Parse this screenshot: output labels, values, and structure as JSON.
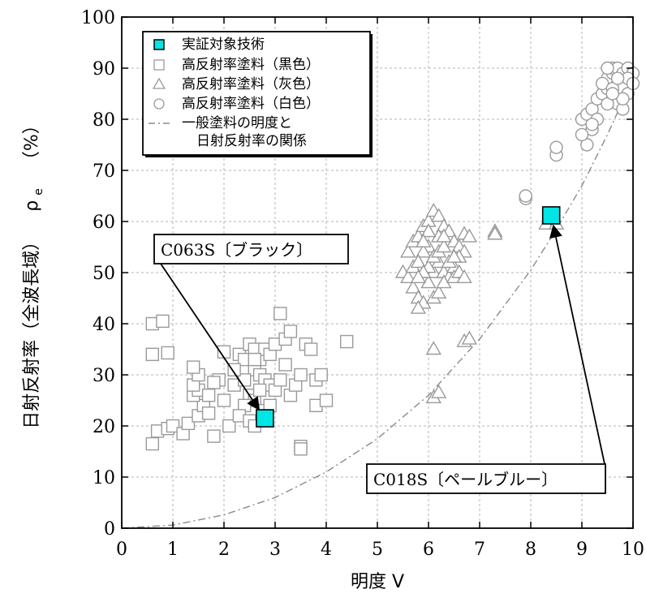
{
  "chart_data": {
    "type": "scatter",
    "title": "",
    "xlabel": "明度 V",
    "ylabel": "日射反射率（全波長域） ρe（%）",
    "ylabel_main": "日射反射率（全波長域）",
    "ylabel_rho": "ρ",
    "ylabel_sub": "e",
    "ylabel_unit": "（%）",
    "xlim": [
      0,
      10
    ],
    "ylim": [
      0,
      100
    ],
    "x_ticks": [
      "0",
      "1",
      "2",
      "3",
      "4",
      "5",
      "6",
      "7",
      "8",
      "9",
      "10"
    ],
    "y_ticks": [
      "0",
      "10",
      "20",
      "30",
      "40",
      "50",
      "60",
      "70",
      "80",
      "90",
      "100"
    ],
    "grid": true,
    "legend_position": "top-left",
    "colors": {
      "target": "#00e5e5",
      "gray_marker": "#9a9a9a",
      "curve": "#8a8a8a",
      "arrow": "#000000"
    },
    "legend": [
      {
        "label": "実証対象技術",
        "marker": "filled-square"
      },
      {
        "label": "高反射率塗料（黒色）",
        "marker": "square"
      },
      {
        "label": "高反射率塗料（灰色）",
        "marker": "triangle"
      },
      {
        "label": "高反射率塗料（白色）",
        "marker": "circle"
      },
      {
        "label": "一般塗料の明度と",
        "label2": "日射反射率の関係",
        "marker": "dashdot-line"
      }
    ],
    "series": [
      {
        "name": "実証対象技術",
        "marker": "filled-square",
        "points": [
          [
            2.8,
            21.5
          ],
          [
            8.4,
            61.2
          ]
        ]
      },
      {
        "name": "高反射率塗料（黒色）",
        "marker": "square",
        "points": [
          [
            0.6,
            40
          ],
          [
            0.8,
            40.5
          ],
          [
            0.6,
            34
          ],
          [
            0.9,
            34.3
          ],
          [
            0.7,
            19
          ],
          [
            0.9,
            19.5
          ],
          [
            0.6,
            16.5
          ],
          [
            1.0,
            20
          ],
          [
            1.2,
            18.5
          ],
          [
            1.3,
            20.5
          ],
          [
            1.5,
            22
          ],
          [
            1.6,
            24
          ],
          [
            1.4,
            26
          ],
          [
            1.5,
            27
          ],
          [
            1.7,
            26
          ],
          [
            1.4,
            28
          ],
          [
            1.5,
            30
          ],
          [
            1.4,
            31.5
          ],
          [
            1.9,
            29
          ],
          [
            1.8,
            28.5
          ],
          [
            2.0,
            34.5
          ],
          [
            2.3,
            34
          ],
          [
            1.8,
            18
          ],
          [
            2.1,
            20
          ],
          [
            1.7,
            22.5
          ],
          [
            2.0,
            25
          ],
          [
            2.2,
            28
          ],
          [
            2.5,
            36
          ],
          [
            2.6,
            35
          ],
          [
            2.4,
            33
          ],
          [
            2.6,
            31
          ],
          [
            2.7,
            33
          ],
          [
            2.8,
            35
          ],
          [
            2.9,
            34
          ],
          [
            3.0,
            36
          ],
          [
            3.2,
            37
          ],
          [
            3.3,
            38.5
          ],
          [
            3.1,
            42
          ],
          [
            2.7,
            30
          ],
          [
            2.8,
            29
          ],
          [
            2.9,
            28
          ],
          [
            3.0,
            27
          ],
          [
            2.5,
            26
          ],
          [
            2.6,
            25
          ],
          [
            2.4,
            24
          ],
          [
            2.3,
            22
          ],
          [
            2.5,
            21
          ],
          [
            2.6,
            20
          ],
          [
            2.8,
            23
          ],
          [
            2.9,
            24
          ],
          [
            3.1,
            29
          ],
          [
            3.2,
            32
          ],
          [
            3.3,
            26
          ],
          [
            3.4,
            28
          ],
          [
            3.5,
            30
          ],
          [
            3.6,
            36
          ],
          [
            3.7,
            35
          ],
          [
            3.8,
            29
          ],
          [
            3.9,
            30
          ],
          [
            3.8,
            24
          ],
          [
            4.0,
            25
          ],
          [
            4.4,
            36.5
          ],
          [
            3.5,
            16
          ],
          [
            3.5,
            15.5
          ],
          [
            2.7,
            27
          ],
          [
            2.4,
            29
          ],
          [
            2.2,
            31
          ],
          [
            2.6,
            33
          ]
        ]
      },
      {
        "name": "高反射率塗料（灰色）",
        "marker": "triangle",
        "points": [
          [
            5.5,
            50
          ],
          [
            5.6,
            49
          ],
          [
            5.7,
            51
          ],
          [
            5.6,
            54
          ],
          [
            5.7,
            56
          ],
          [
            5.8,
            57
          ],
          [
            5.9,
            59
          ],
          [
            6.0,
            60
          ],
          [
            6.1,
            62
          ],
          [
            6.2,
            61
          ],
          [
            6.3,
            59
          ],
          [
            6.4,
            58
          ],
          [
            6.5,
            56
          ],
          [
            6.6,
            55
          ],
          [
            6.7,
            54
          ],
          [
            6.2,
            57
          ],
          [
            6.0,
            55
          ],
          [
            5.9,
            54
          ],
          [
            5.8,
            52
          ],
          [
            5.7,
            47
          ],
          [
            5.8,
            45
          ],
          [
            5.9,
            44
          ],
          [
            5.8,
            43
          ],
          [
            6.0,
            48
          ],
          [
            6.1,
            50
          ],
          [
            6.2,
            52
          ],
          [
            6.3,
            50
          ],
          [
            6.4,
            49
          ],
          [
            6.5,
            51
          ],
          [
            6.6,
            53
          ],
          [
            6.7,
            57.5
          ],
          [
            6.8,
            57
          ],
          [
            7.3,
            58
          ],
          [
            7.3,
            57.5
          ],
          [
            6.1,
            45
          ],
          [
            6.2,
            46
          ],
          [
            6.3,
            48
          ],
          [
            6.5,
            49
          ],
          [
            6.0,
            51
          ],
          [
            6.1,
            53
          ],
          [
            6.2,
            54
          ],
          [
            6.3,
            55
          ],
          [
            6.4,
            52
          ],
          [
            6.5,
            53
          ],
          [
            6.6,
            50
          ],
          [
            6.7,
            49
          ],
          [
            5.9,
            50
          ],
          [
            5.8,
            49
          ],
          [
            6.1,
            35
          ],
          [
            6.7,
            36.5
          ],
          [
            6.8,
            37
          ],
          [
            6.1,
            25.5
          ],
          [
            6.2,
            26.5
          ],
          [
            8.3,
            59.5
          ],
          [
            8.5,
            59.5
          ],
          [
            6.0,
            58
          ],
          [
            5.9,
            56
          ],
          [
            6.3,
            57
          ]
        ]
      },
      {
        "name": "高反射率塗料（白色）",
        "marker": "circle",
        "points": [
          [
            7.9,
            64.5
          ],
          [
            7.9,
            65
          ],
          [
            8.5,
            73
          ],
          [
            8.5,
            74.5
          ],
          [
            9.1,
            75
          ],
          [
            9.2,
            78
          ],
          [
            9.0,
            80
          ],
          [
            9.1,
            81
          ],
          [
            9.2,
            82
          ],
          [
            9.3,
            84
          ],
          [
            9.4,
            85
          ],
          [
            9.5,
            86
          ],
          [
            9.5,
            88
          ],
          [
            9.6,
            89
          ],
          [
            9.6,
            90
          ],
          [
            9.7,
            90
          ],
          [
            9.8,
            89
          ],
          [
            9.9,
            90
          ],
          [
            10.0,
            89
          ],
          [
            9.7,
            87
          ],
          [
            9.8,
            86
          ],
          [
            9.9,
            85
          ],
          [
            9.6,
            84
          ],
          [
            9.7,
            83
          ],
          [
            9.8,
            82
          ],
          [
            9.5,
            83
          ],
          [
            9.4,
            87
          ],
          [
            9.6,
            86
          ],
          [
            9.9,
            88
          ],
          [
            10.0,
            87
          ],
          [
            9.3,
            80
          ],
          [
            9.2,
            79
          ],
          [
            9.0,
            77
          ],
          [
            9.7,
            88
          ],
          [
            9.8,
            84
          ],
          [
            9.5,
            90
          ],
          [
            9.6,
            85
          ]
        ]
      },
      {
        "name": "一般塗料の明度と日射反射率の関係",
        "marker": "dashdot-line",
        "points": [
          [
            0,
            0
          ],
          [
            1,
            0.6
          ],
          [
            2,
            2.6
          ],
          [
            3,
            6
          ],
          [
            4,
            11
          ],
          [
            5,
            17.5
          ],
          [
            6,
            26
          ],
          [
            7,
            37
          ],
          [
            8,
            50.5
          ],
          [
            8.5,
            58.5
          ],
          [
            9,
            67
          ],
          [
            9.5,
            77
          ],
          [
            10,
            88
          ]
        ]
      }
    ],
    "annotations": [
      {
        "text": "C063S〔ブラック〕",
        "points_to": [
          2.8,
          21.5
        ]
      },
      {
        "text": "C018S〔ペールブルー〕",
        "points_to": [
          8.4,
          61.2
        ]
      }
    ]
  }
}
